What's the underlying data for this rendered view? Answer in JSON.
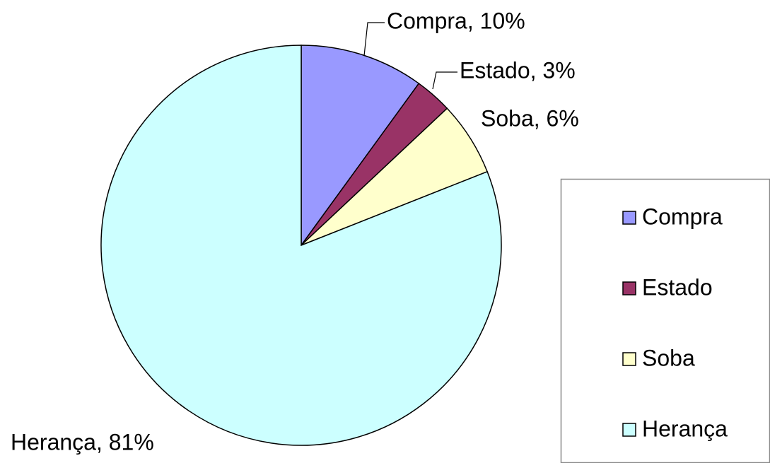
{
  "chart_data": {
    "type": "pie",
    "categories": [
      "Compra",
      "Estado",
      "Soba",
      "Herança"
    ],
    "values": [
      10,
      3,
      6,
      81
    ],
    "value_labels": [
      "Compra, 10%",
      "Estado, 3%",
      "Soba, 6%",
      "Herança, 81%"
    ],
    "colors": [
      "#9999ff",
      "#993366",
      "#ffffcc",
      "#ccffff"
    ],
    "legend": "right"
  }
}
